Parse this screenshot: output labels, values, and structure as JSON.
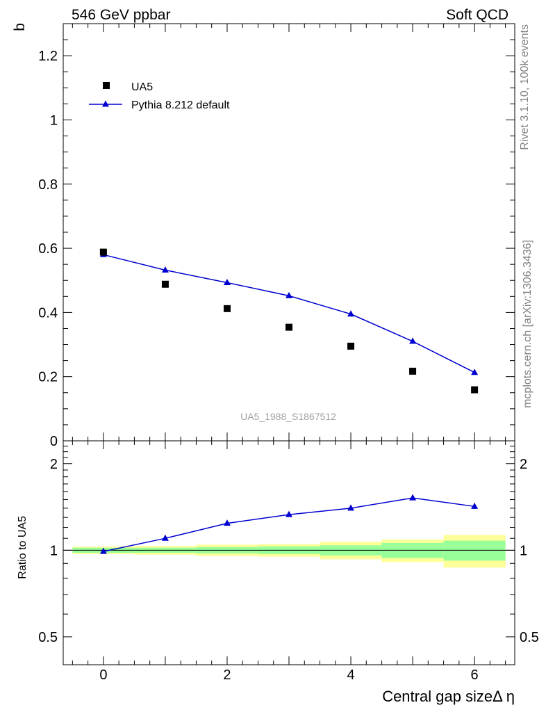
{
  "header": {
    "left_title": "546 GeV ppbar",
    "right_title": "Soft QCD"
  },
  "side_labels": {
    "rivet": "Rivet 3.1.10,  100k events",
    "mcplots": "mcplots.cern.ch [arXiv:1306.3436]"
  },
  "watermark": "UA5_1988_S1867512",
  "chart_data": [
    {
      "type": "scatter",
      "panel": "main",
      "ylabel": "b",
      "xlabel": "",
      "xlim": [
        -0.65,
        6.65
      ],
      "ylim": [
        0,
        1.3
      ],
      "y_ticks": [
        0,
        0.2,
        0.4,
        0.6,
        0.8,
        1,
        1.2
      ],
      "y_tick_labels": [
        "0",
        "0.2",
        "0.4",
        "0.6",
        "0.8",
        "1",
        "1.2"
      ],
      "series": [
        {
          "name": "UA5",
          "style": "black-squares",
          "x": [
            0,
            1,
            2,
            3,
            4,
            5,
            6
          ],
          "values": [
            0.588,
            0.488,
            0.412,
            0.354,
            0.295,
            0.217,
            0.159
          ]
        },
        {
          "name": "Pythia 8.212 default",
          "style": "blue-line-triangles",
          "x": [
            0,
            1,
            2,
            3,
            4,
            5,
            6
          ],
          "values": [
            0.58,
            0.532,
            0.493,
            0.452,
            0.395,
            0.31,
            0.213
          ]
        }
      ],
      "legend": [
        "UA5",
        "Pythia 8.212 default"
      ],
      "legend_position": "top-left"
    },
    {
      "type": "line",
      "panel": "ratio",
      "ylabel": "Ratio to UA5",
      "xlabel": "Central gap sizeΔ η",
      "xlim": [
        -0.65,
        6.65
      ],
      "ylim": [
        0.4,
        2.4
      ],
      "log_y": true,
      "y_ticks": [
        0.5,
        1,
        2
      ],
      "y_tick_labels": [
        "0.5",
        "1",
        "2"
      ],
      "x_ticks": [
        0,
        2,
        4,
        6
      ],
      "x_tick_labels": [
        "0",
        "2",
        "4",
        "6"
      ],
      "reference": 1,
      "bins": [
        {
          "lo": -0.5,
          "hi": 0.5,
          "stat": 0.02,
          "total": 0.03
        },
        {
          "lo": 0.5,
          "hi": 1.5,
          "stat": 0.02,
          "total": 0.035
        },
        {
          "lo": 1.5,
          "hi": 2.5,
          "stat": 0.025,
          "total": 0.045
        },
        {
          "lo": 2.5,
          "hi": 3.5,
          "stat": 0.03,
          "total": 0.05
        },
        {
          "lo": 3.5,
          "hi": 4.5,
          "stat": 0.04,
          "total": 0.07
        },
        {
          "lo": 4.5,
          "hi": 5.5,
          "stat": 0.06,
          "total": 0.09
        },
        {
          "lo": 5.5,
          "hi": 6.5,
          "stat": 0.08,
          "total": 0.13
        }
      ],
      "series": [
        {
          "name": "Pythia 8.212 default / UA5",
          "x": [
            0,
            1,
            2,
            3,
            4,
            5,
            6
          ],
          "values": [
            0.99,
            1.1,
            1.24,
            1.33,
            1.4,
            1.52,
            1.42
          ]
        }
      ]
    }
  ]
}
